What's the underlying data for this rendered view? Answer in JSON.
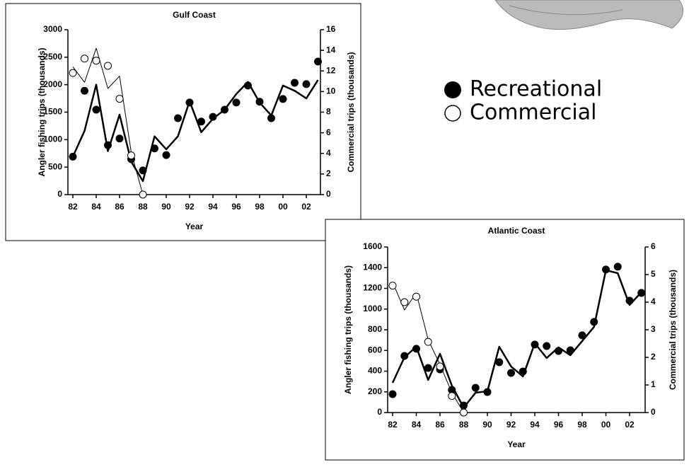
{
  "chart_data": [
    {
      "type": "line",
      "title": "Gulf Coast",
      "xlabel": "Year",
      "ylabel": "Angler fishing trips (thousands)",
      "y2label": "Commercial trips (thousands)",
      "categories": [
        "82",
        null,
        "84",
        null,
        "86",
        null,
        "88",
        null,
        "90",
        null,
        "92",
        null,
        "94",
        null,
        "96",
        null,
        "98",
        null,
        "00",
        null,
        "02",
        null
      ],
      "ylim": [
        0,
        3000
      ],
      "yticks": [
        0,
        500,
        1000,
        1500,
        2000,
        2500,
        3000
      ],
      "y2lim": [
        0,
        16
      ],
      "y2ticks": [
        0,
        2,
        4,
        6,
        8,
        10,
        12,
        14,
        16
      ],
      "series": [
        {
          "name": "Recreational",
          "color": "#000000",
          "style": "markers",
          "marker": "filled",
          "values": [
            690,
            1890,
            1545,
            900,
            1020,
            645,
            440,
            840,
            720,
            1390,
            1675,
            1330,
            1415,
            1545,
            1675,
            1985,
            1690,
            1390,
            1740,
            2035,
            2010,
            2420
          ]
        },
        {
          "name": "Commercial",
          "color": "#000000",
          "style": "markers",
          "marker": "open",
          "axis": "y2",
          "values": [
            11.8,
            13.2,
            13.0,
            12.5,
            9.3,
            3.8,
            0,
            null,
            null,
            null,
            null,
            null,
            null,
            null,
            null,
            null,
            null,
            null,
            null,
            null,
            null,
            null
          ]
        },
        {
          "color": "#000000",
          "style": "line",
          "width": 2.5,
          "values": [
            690,
            1160,
            2000,
            790,
            1455,
            600,
            245,
            1060,
            825,
            1060,
            1700,
            1135,
            1380,
            1545,
            1830,
            2050,
            1675,
            1440,
            1985,
            1890,
            1750,
            2085
          ]
        },
        {
          "color": "#000000",
          "style": "line",
          "width": 1,
          "axis": "y2",
          "values": [
            12.4,
            10.9,
            14.2,
            10.3,
            11.5,
            4.1,
            0,
            null,
            null,
            null,
            null,
            null,
            null,
            null,
            null,
            null,
            null,
            null,
            null,
            null,
            null,
            null
          ]
        }
      ]
    },
    {
      "type": "line",
      "title": "Atlantic Coast",
      "xlabel": "Year",
      "ylabel": "Angler fishing trips (thousands)",
      "y2label": "Commercial trips (thousands)",
      "categories": [
        "82",
        null,
        "84",
        null,
        "86",
        null,
        "88",
        null,
        "90",
        null,
        "92",
        null,
        "94",
        null,
        "96",
        null,
        "98",
        null,
        "00",
        null,
        "02",
        null
      ],
      "ylim": [
        0,
        1600
      ],
      "yticks": [
        0,
        200,
        400,
        600,
        800,
        1000,
        1200,
        1400,
        1600
      ],
      "y2lim": [
        0,
        6
      ],
      "y2ticks": [
        0,
        1,
        2,
        3,
        4,
        5,
        6
      ],
      "series": [
        {
          "color": "#000000",
          "style": "markers",
          "marker": "filled",
          "values": [
            178,
            547,
            616,
            431,
            417,
            219,
            68,
            239,
            198,
            486,
            383,
            397,
            657,
            643,
            595,
            602,
            746,
            876,
            1382,
            1409,
            1081,
            1156
          ]
        },
        {
          "color": "#000000",
          "style": "markers",
          "marker": "open",
          "axis": "y2",
          "values": [
            4.6,
            4.0,
            4.2,
            2.56,
            1.67,
            0.6,
            0,
            null,
            null,
            null,
            null,
            null,
            null,
            null,
            null,
            null,
            null,
            null,
            null,
            null,
            null,
            null
          ]
        },
        {
          "color": "#000000",
          "style": "line",
          "width": 2.5,
          "values": [
            287,
            534,
            636,
            315,
            568,
            260,
            48,
            192,
            205,
            636,
            445,
            349,
            670,
            527,
            630,
            554,
            691,
            828,
            1375,
            1347,
            1040,
            1163
          ]
        },
        {
          "color": "#000000",
          "style": "line",
          "width": 1,
          "axis": "y2",
          "values": [
            4.72,
            3.72,
            4.33,
            2.64,
            1.74,
            0.72,
            0,
            null,
            null,
            null,
            null,
            null,
            null,
            null,
            null,
            null,
            null,
            null,
            null,
            null,
            null,
            null
          ]
        }
      ]
    }
  ]
}
